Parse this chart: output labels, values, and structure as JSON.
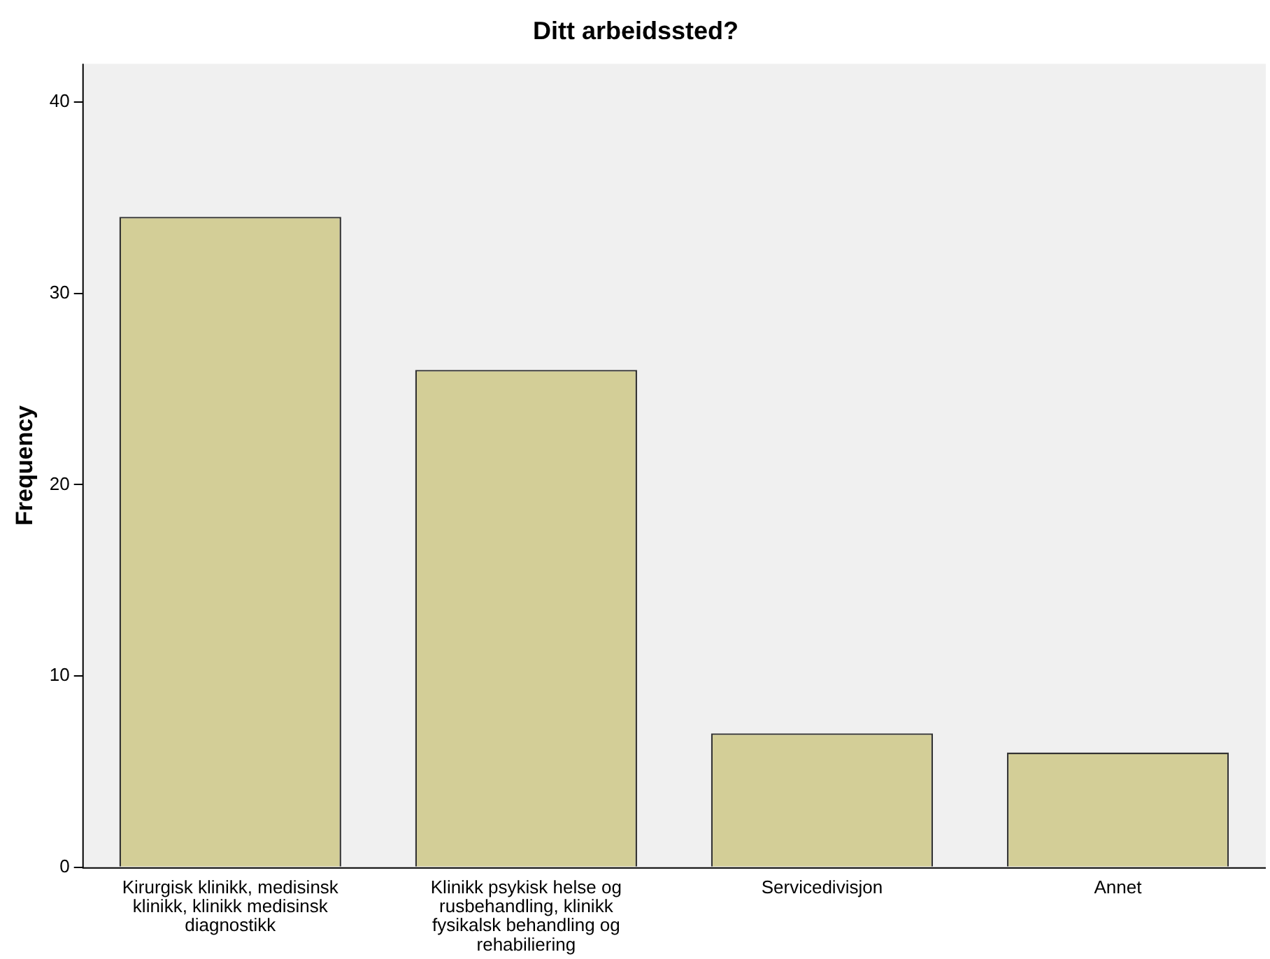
{
  "chart_data": {
    "type": "bar",
    "title": "Ditt arbeidssted?",
    "ylabel": "Frequency",
    "categories": [
      "Kirurgisk klinikk, medisinsk klinikk, klinikk medisinsk diagnostikk",
      "Klinikk psykisk helse og rusbehandling, klinikk fysikalsk behandling og rehabiliering",
      "Servicedivisjon",
      "Annet"
    ],
    "values": [
      34,
      26,
      7,
      6
    ],
    "color": "#d3ce97",
    "ylim": [
      0,
      42
    ],
    "yticks": [
      0,
      10,
      20,
      30,
      40
    ],
    "grid": false
  }
}
